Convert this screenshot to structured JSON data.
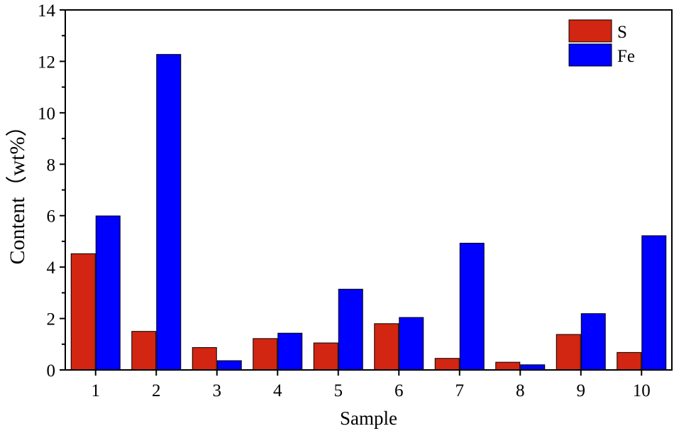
{
  "chart_data": {
    "type": "bar",
    "xlabel": "Sample",
    "ylabel": "Content（wt%）",
    "categories": [
      "1",
      "2",
      "3",
      "4",
      "5",
      "6",
      "7",
      "8",
      "9",
      "10"
    ],
    "ylim": [
      0,
      14
    ],
    "yticks": [
      "0",
      "2",
      "4",
      "6",
      "8",
      "10",
      "12",
      "14"
    ],
    "legend_position": "top-right",
    "grid": false,
    "series": [
      {
        "name": "S",
        "color": "#d22512",
        "values": [
          4.52,
          1.5,
          0.87,
          1.22,
          1.05,
          1.8,
          0.45,
          0.3,
          1.38,
          0.68
        ]
      },
      {
        "name": "Fe",
        "color": "#0000ff",
        "values": [
          5.99,
          12.27,
          0.36,
          1.43,
          3.14,
          2.04,
          4.93,
          0.2,
          2.19,
          5.22
        ]
      }
    ]
  }
}
